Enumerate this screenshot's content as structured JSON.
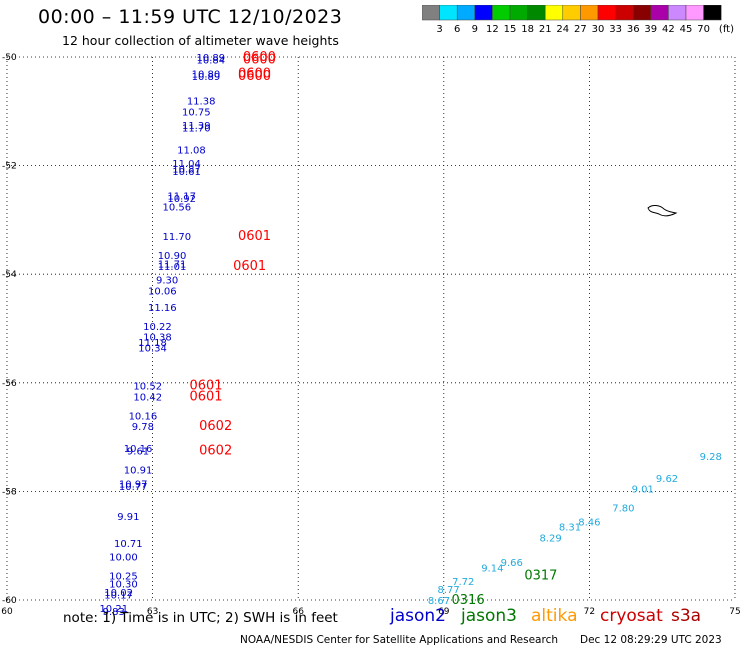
{
  "title": "00:00 – 11:59 UTC 12/10/2023",
  "subtitle": "12 hour collection of altimeter wave heights",
  "colorbar": {
    "labels": [
      "3",
      "6",
      "9",
      "12",
      "15",
      "18",
      "21",
      "24",
      "27",
      "30",
      "33",
      "36",
      "39",
      "42",
      "45",
      "70"
    ],
    "unit": "(ft)",
    "colors": [
      "#808080",
      "#00e5ff",
      "#00aaff",
      "#0000ff",
      "#00cc00",
      "#00aa00",
      "#008800",
      "#ffff00",
      "#ffcc00",
      "#ff9900",
      "#ff0000",
      "#cc0000",
      "#880000",
      "#aa00aa",
      "#cc88ff",
      "#ff99ff",
      "#000000"
    ]
  },
  "axes": {
    "x_ticks": [
      "60",
      "63",
      "66",
      "69",
      "72",
      "75"
    ],
    "y_ticks": [
      "-50",
      "-52",
      "-54",
      "-56",
      "-58",
      "-60"
    ]
  },
  "note": "note:  1) Time is in UTC;  2) SWH is in feet",
  "legend": [
    {
      "label": "jason2",
      "color": "#0000cc"
    },
    {
      "label": "jason3",
      "color": "#007700"
    },
    {
      "label": "altika",
      "color": "#ff9900"
    },
    {
      "label": "cryosat",
      "color": "#cc0000"
    },
    {
      "label": "s3a",
      "color": "#aa0000"
    }
  ],
  "credit": "NOAA/NESDIS Center for Satellite Applications and Research",
  "timestamp": "Dec 12 08:29:29 UTC 2023",
  "chart_data": {
    "type": "scatter",
    "title": "00:00 – 11:59 UTC 12/10/2023",
    "subtitle": "12 hour collection of altimeter wave heights",
    "xlim": [
      60,
      75
    ],
    "ylim": [
      -60,
      -50
    ],
    "grid": true,
    "series": [
      {
        "name": "jason2",
        "color": "#0000cc",
        "points": [
          {
            "lon": 64.2,
            "lat": -50.0,
            "label": "10.89"
          },
          {
            "lon": 64.2,
            "lat": -50.05,
            "label": "10.84"
          },
          {
            "lon": 64.1,
            "lat": -50.3,
            "label": "10.80"
          },
          {
            "lon": 64.1,
            "lat": -50.35,
            "label": "10.89"
          },
          {
            "lon": 64.0,
            "lat": -50.8,
            "label": "11.38"
          },
          {
            "lon": 63.9,
            "lat": -51.0,
            "label": "10.75"
          },
          {
            "lon": 63.9,
            "lat": -51.25,
            "label": "11.39"
          },
          {
            "lon": 63.9,
            "lat": -51.3,
            "label": "11.70"
          },
          {
            "lon": 63.8,
            "lat": -51.7,
            "label": "11.08"
          },
          {
            "lon": 63.7,
            "lat": -51.95,
            "label": "11.04"
          },
          {
            "lon": 63.7,
            "lat": -52.05,
            "label": "10.87"
          },
          {
            "lon": 63.7,
            "lat": -52.1,
            "label": "10.61"
          },
          {
            "lon": 63.6,
            "lat": -52.55,
            "label": "11.17"
          },
          {
            "lon": 63.6,
            "lat": -52.6,
            "label": "10.92"
          },
          {
            "lon": 63.5,
            "lat": -52.75,
            "label": "10.56"
          },
          {
            "lon": 63.5,
            "lat": -53.3,
            "label": "11.70"
          },
          {
            "lon": 63.4,
            "lat": -53.65,
            "label": "10.90"
          },
          {
            "lon": 63.4,
            "lat": -53.8,
            "label": "11.71"
          },
          {
            "lon": 63.4,
            "lat": -53.85,
            "label": "11.01"
          },
          {
            "lon": 63.3,
            "lat": -54.1,
            "label": "9.30"
          },
          {
            "lon": 63.2,
            "lat": -54.3,
            "label": "10.06"
          },
          {
            "lon": 63.2,
            "lat": -54.6,
            "label": "11.16"
          },
          {
            "lon": 63.1,
            "lat": -54.95,
            "label": "10.22"
          },
          {
            "lon": 63.1,
            "lat": -55.15,
            "label": "10.38"
          },
          {
            "lon": 63.0,
            "lat": -55.25,
            "label": "11.18"
          },
          {
            "lon": 63.0,
            "lat": -55.35,
            "label": "10.34"
          },
          {
            "lon": 62.9,
            "lat": -56.05,
            "label": "10.52"
          },
          {
            "lon": 62.9,
            "lat": -56.25,
            "label": "10.42"
          },
          {
            "lon": 62.8,
            "lat": -56.6,
            "label": "10.16"
          },
          {
            "lon": 62.8,
            "lat": -56.8,
            "label": "9.78"
          },
          {
            "lon": 62.7,
            "lat": -57.2,
            "label": "10.16"
          },
          {
            "lon": 62.7,
            "lat": -57.25,
            "label": "9.61"
          },
          {
            "lon": 62.7,
            "lat": -57.6,
            "label": "10.91"
          },
          {
            "lon": 62.6,
            "lat": -57.85,
            "label": "10.97"
          },
          {
            "lon": 62.6,
            "lat": -57.9,
            "label": "10.77"
          },
          {
            "lon": 62.5,
            "lat": -58.45,
            "label": "9.91"
          },
          {
            "lon": 62.5,
            "lat": -58.95,
            "label": "10.71"
          },
          {
            "lon": 62.4,
            "lat": -59.2,
            "label": "10.00"
          },
          {
            "lon": 62.4,
            "lat": -59.55,
            "label": "10.25"
          },
          {
            "lon": 62.4,
            "lat": -59.7,
            "label": "10.30"
          },
          {
            "lon": 62.3,
            "lat": -59.85,
            "label": "10.02"
          },
          {
            "lon": 62.3,
            "lat": -59.9,
            "label": "10.17"
          },
          {
            "lon": 62.2,
            "lat": -60.15,
            "label": "10.21"
          },
          {
            "lon": 62.2,
            "lat": -60.2,
            "label": "9.83"
          }
        ]
      },
      {
        "name": "cryosat",
        "color": "#ff0000",
        "points": [
          {
            "lon": 65.2,
            "lat": -50.0,
            "label": "0600"
          },
          {
            "lon": 65.2,
            "lat": -50.05,
            "label": "0600"
          },
          {
            "lon": 65.1,
            "lat": -50.3,
            "label": "0600"
          },
          {
            "lon": 65.1,
            "lat": -50.35,
            "label": "0600"
          },
          {
            "lon": 65.1,
            "lat": -53.3,
            "label": "0601"
          },
          {
            "lon": 65.0,
            "lat": -53.85,
            "label": "0601"
          },
          {
            "lon": 64.1,
            "lat": -56.05,
            "label": "0601"
          },
          {
            "lon": 64.1,
            "lat": -56.25,
            "label": "0601"
          },
          {
            "lon": 64.3,
            "lat": -56.8,
            "label": "0602"
          },
          {
            "lon": 64.3,
            "lat": -57.25,
            "label": "0602"
          }
        ]
      },
      {
        "name": "jason3",
        "color": "#22aadd",
        "points": [
          {
            "lon": 68.9,
            "lat": -60.0,
            "label": "8.67"
          },
          {
            "lon": 69.1,
            "lat": -59.8,
            "label": "8.77"
          },
          {
            "lon": 69.4,
            "lat": -59.65,
            "label": "7.72"
          },
          {
            "lon": 70.0,
            "lat": -59.4,
            "label": "9.14"
          },
          {
            "lon": 70.4,
            "lat": -59.3,
            "label": "9.66"
          },
          {
            "lon": 71.2,
            "lat": -58.85,
            "label": "8.29"
          },
          {
            "lon": 71.6,
            "lat": -58.65,
            "label": "8.31"
          },
          {
            "lon": 72.0,
            "lat": -58.55,
            "label": "8.46"
          },
          {
            "lon": 72.7,
            "lat": -58.3,
            "label": "7.80"
          },
          {
            "lon": 73.1,
            "lat": -57.95,
            "label": "9.01"
          },
          {
            "lon": 73.6,
            "lat": -57.75,
            "label": "9.62"
          },
          {
            "lon": 74.5,
            "lat": -57.35,
            "label": "9.28"
          }
        ]
      },
      {
        "name": "jason3-time",
        "color": "#007700",
        "points": [
          {
            "lon": 69.5,
            "lat": -60.0,
            "label": "0316"
          },
          {
            "lon": 71.0,
            "lat": -59.55,
            "label": "0317"
          }
        ]
      }
    ]
  }
}
